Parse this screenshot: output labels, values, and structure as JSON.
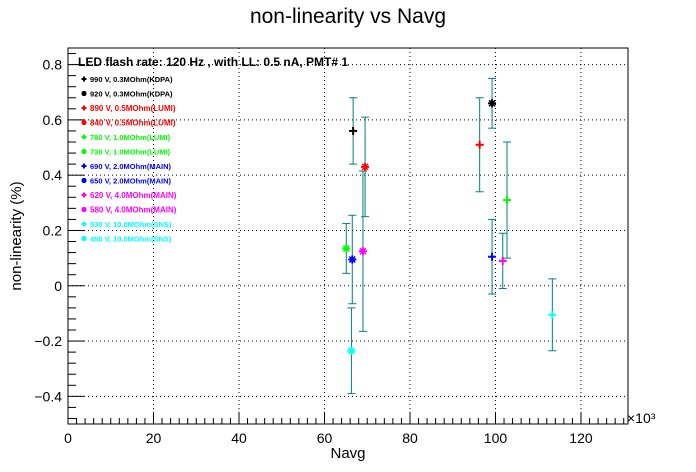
{
  "chart_data": {
    "type": "scatter",
    "title": "non-linearity vs Navg",
    "subtitle": "LED flash rate: 120 Hz , with LL: 0.5 nA, PMT# 1",
    "xlabel": "Navg",
    "ylabel": "non-linearity (%)",
    "x_multiplier_label": "×10³",
    "xlim": [
      0,
      131000
    ],
    "ylim": [
      -0.5,
      0.86
    ],
    "x_ticks": [
      {
        "value": 0,
        "label": "0"
      },
      {
        "value": 20000,
        "label": "20"
      },
      {
        "value": 40000,
        "label": "40"
      },
      {
        "value": 60000,
        "label": "60"
      },
      {
        "value": 80000,
        "label": "80"
      },
      {
        "value": 100000,
        "label": "100"
      },
      {
        "value": 120000,
        "label": "120"
      }
    ],
    "y_ticks": [
      {
        "value": -0.4,
        "label": "−0.4"
      },
      {
        "value": -0.2,
        "label": "−0.2"
      },
      {
        "value": 0,
        "label": "0"
      },
      {
        "value": 0.2,
        "label": "0.2"
      },
      {
        "value": 0.4,
        "label": "0.4"
      },
      {
        "value": 0.6,
        "label": "0.6"
      },
      {
        "value": 0.8,
        "label": "0.8"
      }
    ],
    "grid": true,
    "legend_position": "top-left",
    "error_bar_color": "#008080",
    "series": [
      {
        "name": "990 V, 0.3MOhm(KDPA)",
        "color": "#000000",
        "marker": "plus",
        "points": [
          {
            "x": 66700,
            "y": 0.56,
            "err": 0.12
          }
        ]
      },
      {
        "name": "920 V, 0.3MOhm(KDPA)",
        "color": "#000000",
        "marker": "star",
        "points": [
          {
            "x": 99200,
            "y": 0.66,
            "err": 0.09
          }
        ]
      },
      {
        "name": "890 V, 0.5MOhm(LUMI)",
        "color": "#ff0000",
        "marker": "plus",
        "points": [
          {
            "x": 96300,
            "y": 0.51,
            "err": 0.17
          }
        ]
      },
      {
        "name": "840 V, 0.5MOhm(LUMI)",
        "color": "#ff0000",
        "marker": "star",
        "points": [
          {
            "x": 69500,
            "y": 0.43,
            "err": 0.18
          }
        ]
      },
      {
        "name": "780 V, 1.0MOhm(LUMI)",
        "color": "#00ff00",
        "marker": "plus",
        "points": [
          {
            "x": 102700,
            "y": 0.31,
            "err": 0.21
          }
        ]
      },
      {
        "name": "730 V, 1.0MOhm(LUMI)",
        "color": "#00ff00",
        "marker": "star",
        "points": [
          {
            "x": 65100,
            "y": 0.135,
            "err": 0.09
          }
        ]
      },
      {
        "name": "690 V, 2.0MOhm(MAIN)",
        "color": "#0000ff",
        "marker": "plus",
        "points": [
          {
            "x": 99200,
            "y": 0.105,
            "err": 0.135
          }
        ]
      },
      {
        "name": "650 V, 2.0MOhm(MAIN)",
        "color": "#0000ff",
        "marker": "star",
        "points": [
          {
            "x": 66500,
            "y": 0.095,
            "err": 0.16
          }
        ]
      },
      {
        "name": "620 V, 4.0MOhm(MAIN)",
        "color": "#ff00ff",
        "marker": "plus",
        "points": [
          {
            "x": 101700,
            "y": 0.09,
            "err": 0.1
          }
        ]
      },
      {
        "name": "580 V, 4.0MOhm(MAIN)",
        "color": "#ff00ff",
        "marker": "star",
        "points": [
          {
            "x": 69000,
            "y": 0.125,
            "err": 0.29
          }
        ]
      },
      {
        "name": "530 V, 10.0MOhm(SNS)",
        "color": "#00ffff",
        "marker": "plus",
        "points": [
          {
            "x": 113300,
            "y": -0.105,
            "err": 0.13
          }
        ]
      },
      {
        "name": "480 V, 10.0MOhm(SNS)",
        "color": "#00ffff",
        "marker": "star",
        "points": [
          {
            "x": 66300,
            "y": -0.235,
            "err": 0.155
          }
        ]
      }
    ]
  }
}
